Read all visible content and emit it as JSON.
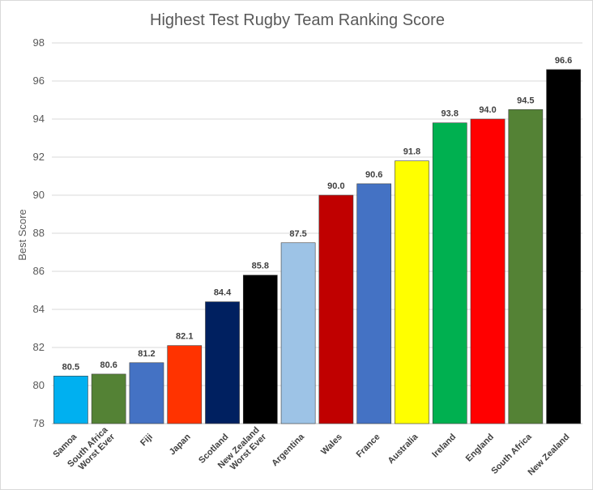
{
  "chart_data": {
    "type": "bar",
    "title": "Highest Test Rugby Team Ranking Score",
    "xlabel": "",
    "ylabel": "Best Score",
    "ylim": [
      78,
      98
    ],
    "yticks": [
      78,
      80,
      82,
      84,
      86,
      88,
      90,
      92,
      94,
      96,
      98
    ],
    "grid": true,
    "legend": "none",
    "categories": [
      [
        "Samoa"
      ],
      [
        "South Africa",
        "Worst Ever"
      ],
      [
        "Fiji"
      ],
      [
        "Japan"
      ],
      [
        "Scotland"
      ],
      [
        "New Zealand",
        "Worst Ever"
      ],
      [
        "Argentina"
      ],
      [
        "Wales"
      ],
      [
        "France"
      ],
      [
        "Australia"
      ],
      [
        "Ireland"
      ],
      [
        "England"
      ],
      [
        "South Africa"
      ],
      [
        "New Zealand"
      ]
    ],
    "values": [
      80.5,
      80.6,
      81.2,
      82.1,
      84.4,
      85.8,
      87.5,
      90.0,
      90.6,
      91.8,
      93.8,
      94.0,
      94.5,
      96.6
    ],
    "data_labels": [
      "80.5",
      "80.6",
      "81.2",
      "82.1",
      "84.4",
      "85.8",
      "87.5",
      "90.0",
      "90.6",
      "91.8",
      "93.8",
      "94.0",
      "94.5",
      "96.6"
    ],
    "colors": [
      "#00B0F0",
      "#548235",
      "#4472C4",
      "#FF3300",
      "#002060",
      "#000000",
      "#9DC3E6",
      "#C00000",
      "#4472C4",
      "#FFFF00",
      "#00B050",
      "#FF0000",
      "#548235",
      "#000000"
    ]
  }
}
